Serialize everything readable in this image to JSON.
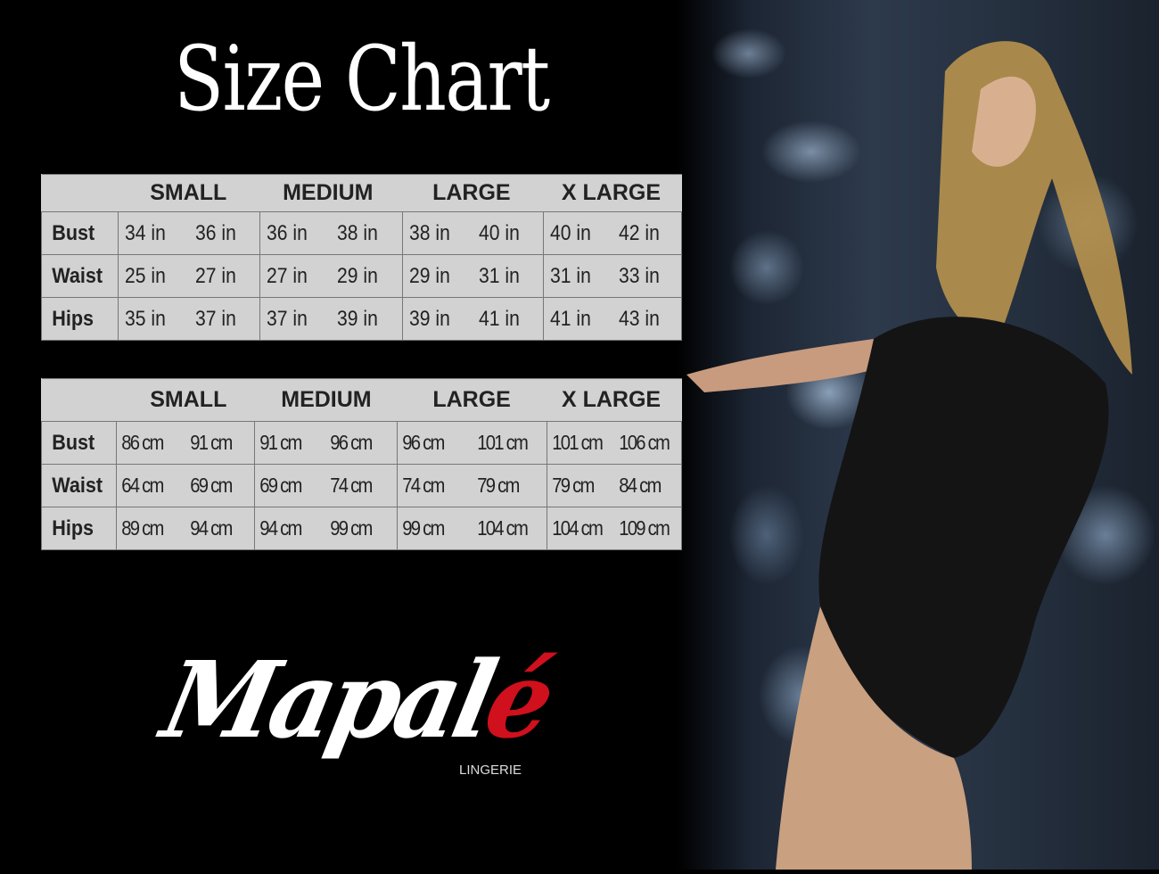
{
  "title": "Size Chart",
  "sizes": [
    "SMALL",
    "MEDIUM",
    "LARGE",
    "X LARGE"
  ],
  "inches_table": {
    "rows": [
      {
        "label": "Bust",
        "values": [
          "34 in",
          "36 in",
          "36 in",
          "38 in",
          "38 in",
          "40 in",
          "40 in",
          "42 in"
        ]
      },
      {
        "label": "Waist",
        "values": [
          "25 in",
          "27 in",
          "27 in",
          "29 in",
          "29 in",
          "31 in",
          "31 in",
          "33 in"
        ]
      },
      {
        "label": "Hips",
        "values": [
          "35 in",
          "37 in",
          "37 in",
          "39 in",
          "39 in",
          "41 in",
          "41 in",
          "43 in"
        ]
      }
    ]
  },
  "cm_table": {
    "rows": [
      {
        "label": "Bust",
        "values": [
          "86 cm",
          "91 cm",
          "91 cm",
          "96 cm",
          "96 cm",
          "101 cm",
          "101 cm",
          "106 cm"
        ]
      },
      {
        "label": "Waist",
        "values": [
          "64 cm",
          "69 cm",
          "69 cm",
          "74 cm",
          "74 cm",
          "79  cm",
          "79 cm",
          "84 cm"
        ]
      },
      {
        "label": "Hips",
        "values": [
          "89 cm",
          "94 cm",
          "94 cm",
          "99 cm",
          "99 cm",
          "104 cm",
          "104 cm",
          "109 cm"
        ]
      }
    ]
  },
  "logo": {
    "main": "Mapal",
    "accent": "é",
    "tagline": "LINGERIE"
  },
  "colors": {
    "table_bg": "#d2d2d2",
    "accent": "#d0101c",
    "background": "#000000"
  }
}
